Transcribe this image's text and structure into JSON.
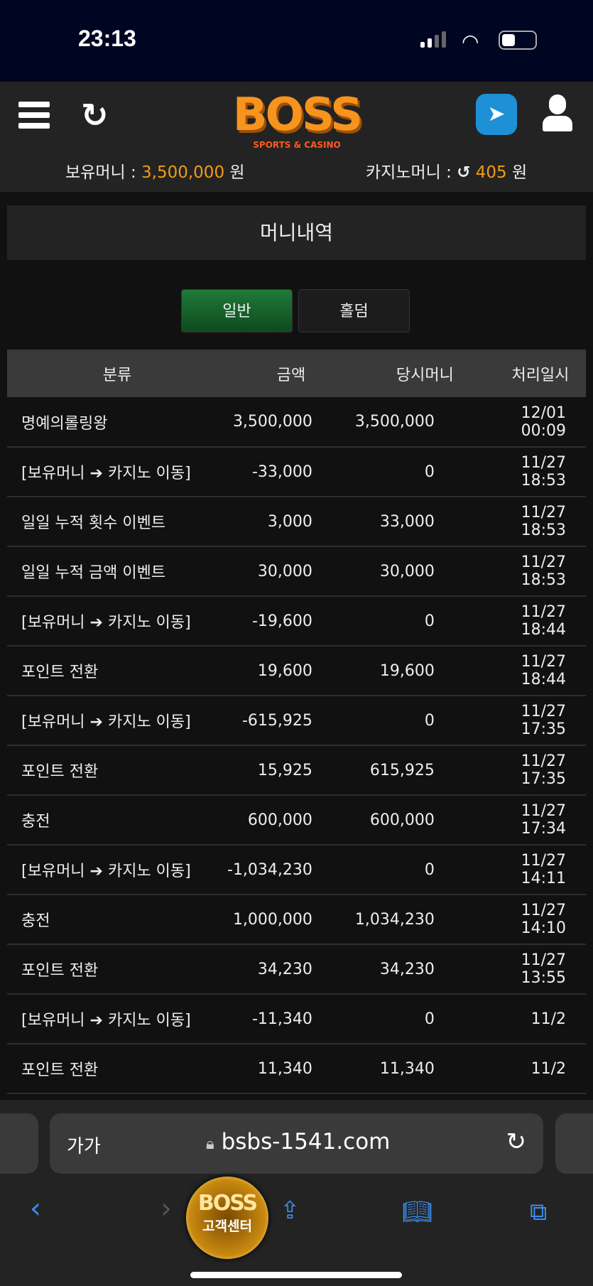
{
  "status": {
    "time": "23:13"
  },
  "header": {
    "logo": "BOSS",
    "logo_sub": "SPORTS & CASINO",
    "balance_label": "보유머니 :",
    "balance_value": "3,500,000",
    "balance_unit": "원",
    "casino_label": "카지노머니 :",
    "casino_value": "405",
    "casino_unit": "원"
  },
  "page": {
    "title": "머니내역",
    "tabs": [
      {
        "label": "일반",
        "active": true
      },
      {
        "label": "홀덤",
        "active": false
      }
    ]
  },
  "table": {
    "columns": [
      "분류",
      "금액",
      "당시머니",
      "처리일시"
    ],
    "rows": [
      [
        "명예의롤링왕",
        "3,500,000",
        "3,500,000",
        "12/01 00:09"
      ],
      [
        "[보유머니 ➔ 카지노 이동]",
        "-33,000",
        "0",
        "11/27 18:53"
      ],
      [
        "일일 누적 횟수 이벤트",
        "3,000",
        "33,000",
        "11/27 18:53"
      ],
      [
        "일일 누적 금액 이벤트",
        "30,000",
        "30,000",
        "11/27 18:53"
      ],
      [
        "[보유머니 ➔ 카지노 이동]",
        "-19,600",
        "0",
        "11/27 18:44"
      ],
      [
        "포인트 전환",
        "19,600",
        "19,600",
        "11/27 18:44"
      ],
      [
        "[보유머니 ➔ 카지노 이동]",
        "-615,925",
        "0",
        "11/27 17:35"
      ],
      [
        "포인트 전환",
        "15,925",
        "615,925",
        "11/27 17:35"
      ],
      [
        "충전",
        "600,000",
        "600,000",
        "11/27 17:34"
      ],
      [
        "[보유머니 ➔ 카지노 이동]",
        "-1,034,230",
        "0",
        "11/27 14:11"
      ],
      [
        "충전",
        "1,000,000",
        "1,034,230",
        "11/27 14:10"
      ],
      [
        "포인트 전환",
        "34,230",
        "34,230",
        "11/27 13:55"
      ],
      [
        "[보유머니 ➔ 카지노 이동]",
        "-11,340",
        "0",
        "11/2"
      ],
      [
        "포인트 전환",
        "11,340",
        "11,340",
        "11/2"
      ]
    ]
  },
  "support_badge": {
    "logo": "BOSS",
    "label": "고객센터"
  },
  "browser": {
    "text_size": "가가",
    "url": "bsbs-1541.com"
  },
  "colors": {
    "accent": "#f39c12",
    "active_tab": "#1f7a38"
  }
}
